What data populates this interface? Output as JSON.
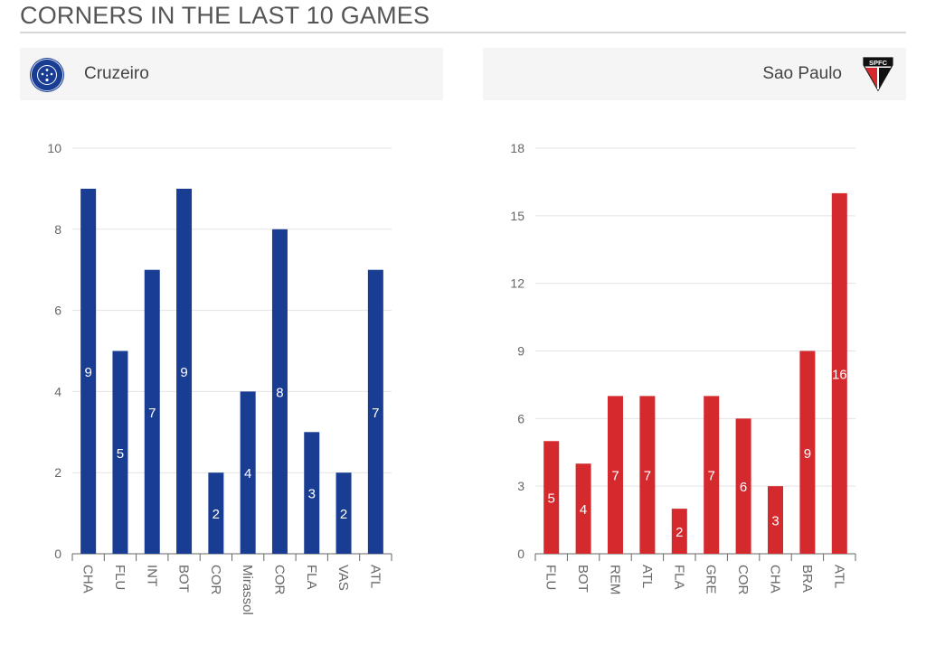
{
  "page": {
    "title": "CORNERS IN THE LAST 10 GAMES"
  },
  "teams": {
    "left": {
      "name": "Cruzeiro",
      "crest_icon": "cruzeiro-crest-icon",
      "color": "#1a3d94"
    },
    "right": {
      "name": "Sao Paulo",
      "crest_icon": "spfc-crest-icon",
      "crest_text": "SPFC",
      "color": "#d42a2e"
    }
  },
  "chart_data": [
    {
      "type": "bar",
      "categories": [
        "CHA",
        "FLU",
        "INT",
        "BOT",
        "COR",
        "Mirassol",
        "COR",
        "FLA",
        "VAS",
        "ATL"
      ],
      "values": [
        9,
        5,
        7,
        9,
        2,
        4,
        8,
        3,
        2,
        7
      ],
      "yticks": [
        0,
        2,
        4,
        6,
        8,
        10
      ],
      "ylim": [
        0,
        10
      ],
      "color": "#1a3d94",
      "grid": true,
      "data_labels": "inside-middle"
    },
    {
      "type": "bar",
      "categories": [
        "FLU",
        "BOT",
        "REM",
        "ATL",
        "FLA",
        "GRE",
        "COR",
        "CHA",
        "BRA",
        "ATL"
      ],
      "values": [
        5,
        4,
        7,
        7,
        2,
        7,
        6,
        3,
        9,
        16
      ],
      "yticks": [
        0,
        3,
        6,
        9,
        12,
        15,
        18
      ],
      "ylim": [
        0,
        18
      ],
      "color": "#d42a2e",
      "grid": true,
      "data_labels": "inside-middle"
    }
  ]
}
